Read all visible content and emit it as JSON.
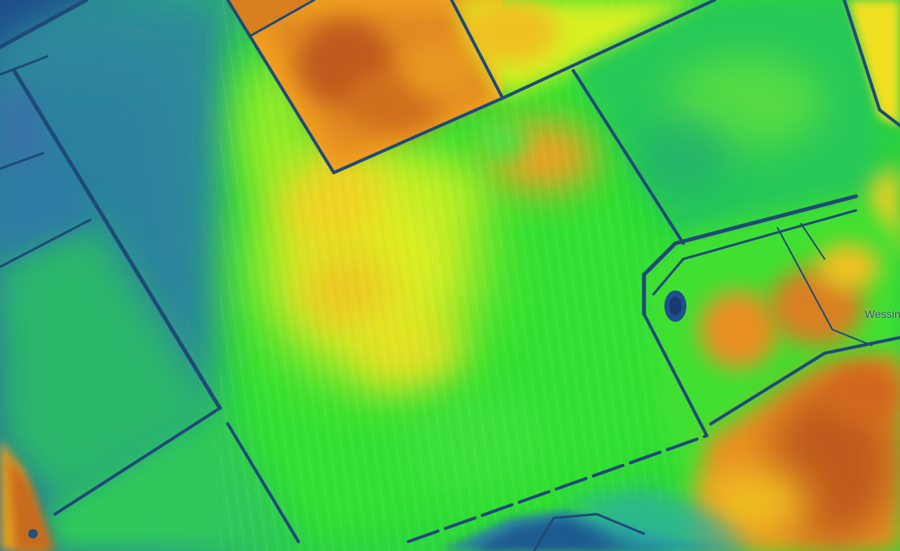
{
  "map": {
    "layer_type": "elevation-heatmap",
    "color_ramp": [
      "#1f3e7a",
      "#2a7a8c",
      "#22c94a",
      "#7ef02a",
      "#f2f01e",
      "#f0a020",
      "#c8681e",
      "#b04a1e"
    ],
    "place_label": "Wessin"
  }
}
